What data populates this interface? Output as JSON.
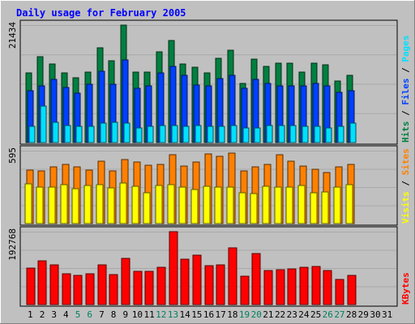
{
  "chart_data": {
    "type": "bar",
    "title": "Daily usage for February 2005",
    "days": [
      "1",
      "2",
      "3",
      "4",
      "5",
      "6",
      "7",
      "8",
      "9",
      "10",
      "11",
      "12",
      "13",
      "14",
      "15",
      "16",
      "17",
      "18",
      "19",
      "20",
      "21",
      "22",
      "23",
      "24",
      "25",
      "26",
      "27",
      "28",
      "29",
      "30",
      "31"
    ],
    "weekend_days": [
      "5",
      "6",
      "12",
      "13",
      "19",
      "20",
      "26",
      "27"
    ],
    "panels": [
      {
        "id": "hits-panel",
        "ymax_label": "21434",
        "ymax": 21434,
        "axis_labels": [
          {
            "text": "Hits",
            "color": "#008040"
          },
          {
            "text": " / ",
            "color": "#000000"
          },
          {
            "text": "Files",
            "color": "#0040ff"
          },
          {
            "text": " / ",
            "color": "#000000"
          },
          {
            "text": "Pages",
            "color": "#00e0ff"
          }
        ],
        "series": [
          {
            "name": "Hits",
            "color": "#008040",
            "values": [
              12700,
              15700,
              14400,
              12700,
              11800,
              12800,
              17300,
              14900,
              21434,
              12800,
              12800,
              16600,
              18600,
              14300,
              13800,
              12700,
              15400,
              16800,
              10800,
              15200,
              13900,
              14500,
              14500,
              12800,
              14500,
              14200,
              11300,
              12300
            ]
          },
          {
            "name": "Files",
            "color": "#0040ff",
            "values": [
              9500,
              10300,
              11500,
              10100,
              9000,
              10600,
              13000,
              10700,
              15100,
              9900,
              10300,
              12700,
              13900,
              12200,
              10500,
              10300,
              11700,
              12200,
              9900,
              11600,
              10800,
              10300,
              10300,
              10300,
              10800,
              10300,
              9100,
              9500
            ]
          },
          {
            "name": "Pages",
            "color": "#00e0ff",
            "values": [
              2900,
              6700,
              3700,
              3100,
              2900,
              2900,
              3500,
              3700,
              3500,
              2700,
              2900,
              3100,
              3100,
              2900,
              3100,
              2900,
              2900,
              3100,
              2700,
              2700,
              3100,
              3100,
              3100,
              2900,
              2900,
              2700,
              2900,
              3500
            ]
          }
        ]
      },
      {
        "id": "visits-panel",
        "ymax_label": "595",
        "ymax": 595,
        "axis_labels": [
          {
            "text": "Visits",
            "color": "#ffff00"
          },
          {
            "text": " / ",
            "color": "#000000"
          },
          {
            "text": "Sites",
            "color": "#ff8000"
          }
        ],
        "series": [
          {
            "name": "Sites",
            "color": "#ff8000",
            "values": [
              435,
              430,
              462,
              485,
              462,
              435,
              510,
              430,
              525,
              502,
              478,
              485,
              562,
              470,
              500,
              570,
              550,
              578,
              430,
              460,
              485,
              562,
              510,
              470,
              440,
              415,
              462,
              485
            ]
          },
          {
            "name": "Visits",
            "color": "#ffff00",
            "values": [
              325,
              300,
              300,
              315,
              285,
              310,
              320,
              290,
              330,
              305,
              250,
              310,
              315,
              295,
              280,
              305,
              300,
              295,
              250,
              245,
              305,
              300,
              295,
              310,
              250,
              260,
              300,
              315
            ]
          }
        ]
      },
      {
        "id": "kbytes-panel",
        "ymax_label": "192768",
        "ymax": 192768,
        "axis_labels": [
          {
            "text": "KBytes",
            "color": "#ff0000"
          }
        ],
        "series": [
          {
            "name": "KBytes",
            "color": "#ff0000",
            "values": [
              96000,
              116000,
              104000,
              82000,
              78000,
              82000,
              104000,
              80000,
              122000,
              88000,
              88000,
              99000,
              192768,
              120000,
              130000,
              103000,
              104000,
              150000,
              74000,
              134000,
              90000,
              93000,
              95000,
              98000,
              100000,
              90000,
              66000,
              78000
            ]
          }
        ]
      }
    ]
  }
}
